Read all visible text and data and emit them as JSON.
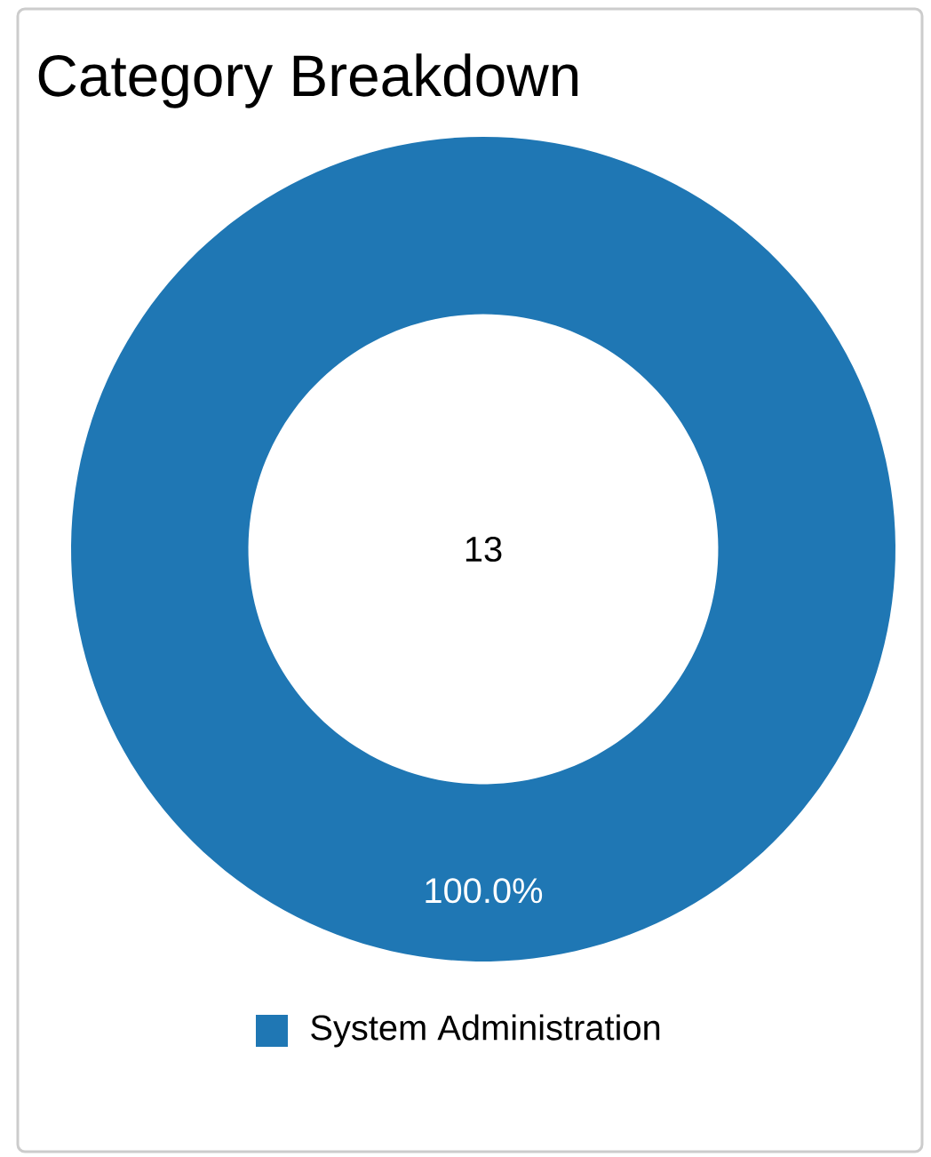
{
  "chart_data": {
    "type": "donut",
    "title": "Category Breakdown",
    "categories": [
      "System Administration"
    ],
    "values": [
      100
    ],
    "value_labels": [
      "100.0%"
    ],
    "colors": [
      "#1f77b4"
    ],
    "annotations": [
      "13"
    ],
    "legend": "bottom"
  }
}
